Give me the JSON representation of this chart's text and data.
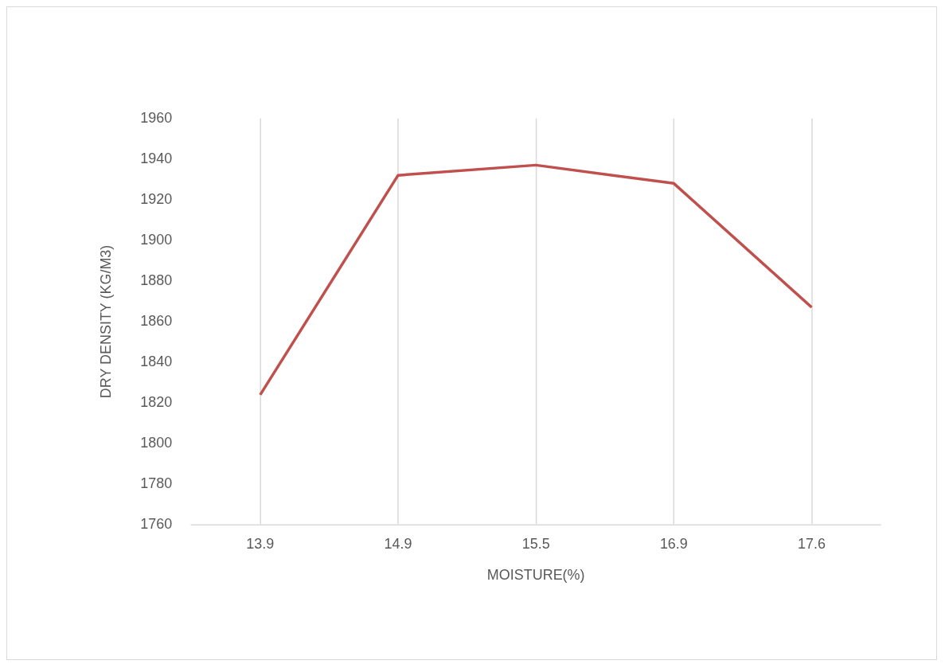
{
  "chart_data": {
    "type": "line",
    "xlabel": "MOISTURE(%)",
    "ylabel": "DRY DENSITY (KG/M3)",
    "categories": [
      "13.9",
      "14.9",
      "15.5",
      "16.9",
      "17.6"
    ],
    "series": [
      {
        "color": "#c0504d",
        "values": [
          1824,
          1932,
          1937,
          1928,
          1867
        ]
      }
    ],
    "ylim": [
      1760,
      1960
    ],
    "yticks": [
      1760,
      1780,
      1800,
      1820,
      1840,
      1860,
      1880,
      1900,
      1920,
      1940,
      1960
    ],
    "grid": "x",
    "legend": false,
    "marker": "none",
    "line_style": "solid"
  }
}
